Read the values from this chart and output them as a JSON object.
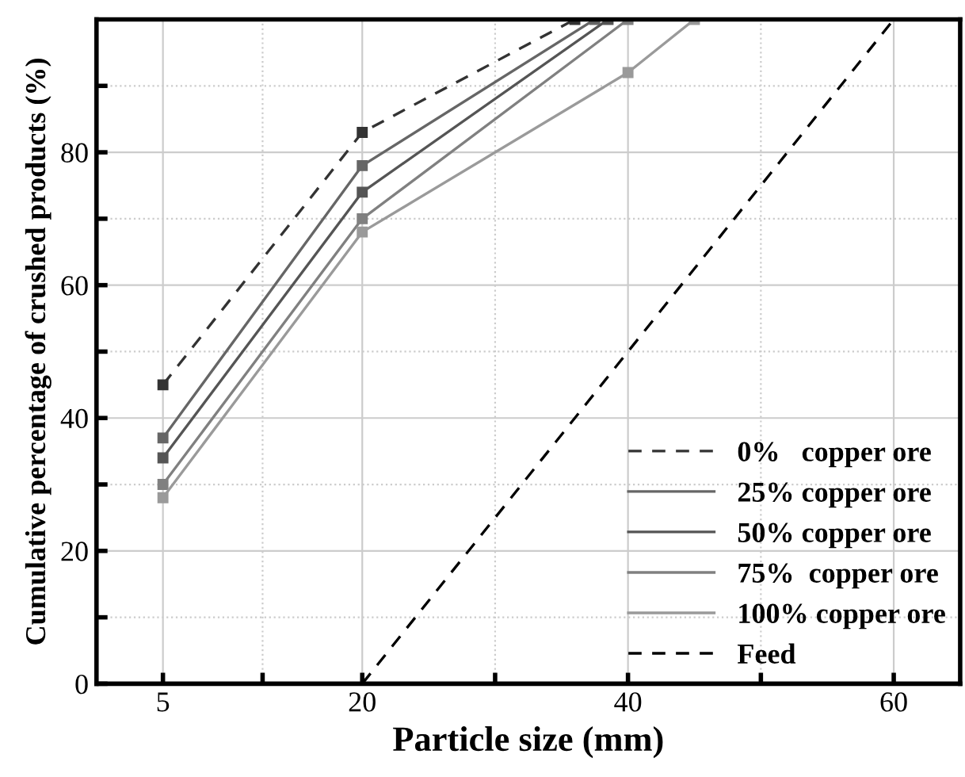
{
  "chart_data": {
    "type": "line",
    "xlabel": "Particle size (mm)",
    "ylabel": "Cumulative percentage of crushed products (%)",
    "xlim": [
      0,
      65
    ],
    "ylim": [
      0,
      100
    ],
    "xticks": [
      5,
      {
        "value": 12.5,
        "label": null
      },
      20,
      {
        "value": 30,
        "label": null
      },
      40,
      {
        "value": 50,
        "label": null
      },
      60
    ],
    "yticks": [
      0,
      {
        "value": 10,
        "label": null
      },
      20,
      {
        "value": 30,
        "label": null
      },
      40,
      {
        "value": 50,
        "label": null
      },
      60,
      {
        "value": 70,
        "label": null
      },
      80,
      {
        "value": 90,
        "label": null
      }
    ],
    "grid": true,
    "legend": "bottom right",
    "marker": "square",
    "series": [
      {
        "name": "0%   copper ore",
        "color": "#333333",
        "line_style": "dashed",
        "x": [
          5,
          20,
          36
        ],
        "values": [
          45,
          83,
          100
        ]
      },
      {
        "name": "25% copper ore",
        "color": "#666666",
        "x": [
          5,
          20,
          37.5
        ],
        "values": [
          37,
          78,
          100
        ]
      },
      {
        "name": "50% copper ore",
        "color": "#555555",
        "x": [
          5,
          20,
          38.5
        ],
        "values": [
          34,
          74,
          100
        ]
      },
      {
        "name": "75%  copper ore",
        "color": "#808080",
        "x": [
          5,
          20,
          40
        ],
        "values": [
          30,
          70,
          100
        ]
      },
      {
        "name": "100% copper ore",
        "color": "#9a9a9a",
        "x": [
          5,
          20,
          40,
          45
        ],
        "values": [
          28,
          68,
          92,
          100
        ]
      },
      {
        "name": "Feed",
        "color": "#000000",
        "line_style": "dashed",
        "marker": "none",
        "x": [
          20,
          60
        ],
        "values": [
          0,
          100
        ]
      }
    ]
  }
}
